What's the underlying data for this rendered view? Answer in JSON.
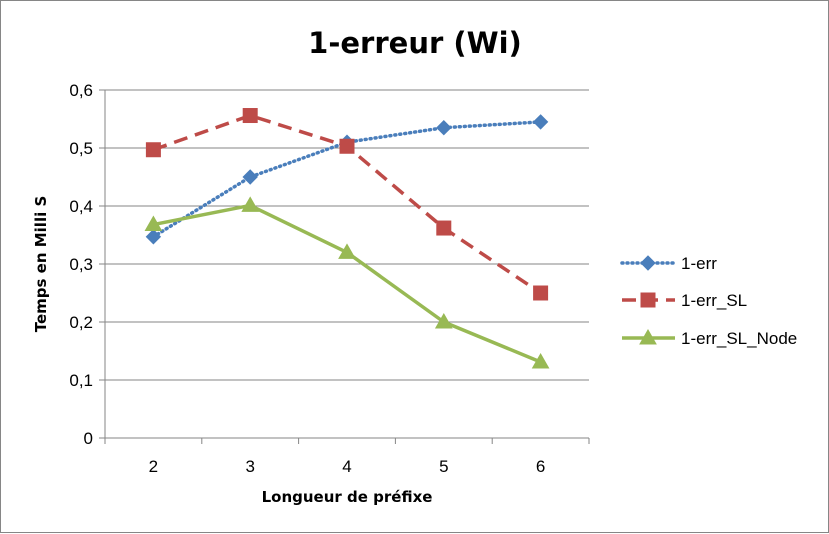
{
  "chart_data": {
    "type": "line",
    "title": "1-erreur (Wi)",
    "xlabel": "Longueur de préfixe",
    "ylabel": "Temps en Milli S",
    "categories": [
      "2",
      "3",
      "4",
      "5",
      "6"
    ],
    "ylim": [
      0,
      0.6
    ],
    "yticks": [
      "0",
      "0,1",
      "0,2",
      "0,3",
      "0,4",
      "0,5",
      "0,6"
    ],
    "grid": true,
    "legend_position": "right",
    "series": [
      {
        "name": "1-err",
        "values": [
          0.347,
          0.45,
          0.51,
          0.535,
          0.545
        ],
        "color": "#4a7ebb",
        "line": "dotted",
        "marker": "diamond"
      },
      {
        "name": "1-err_SL",
        "values": [
          0.497,
          0.556,
          0.503,
          0.362,
          0.25
        ],
        "color": "#be4b48",
        "line": "dashed",
        "marker": "square"
      },
      {
        "name": "1-err_SL_Node",
        "values": [
          0.368,
          0.401,
          0.32,
          0.2,
          0.131
        ],
        "color": "#98b954",
        "line": "solid",
        "marker": "triangle"
      }
    ]
  }
}
